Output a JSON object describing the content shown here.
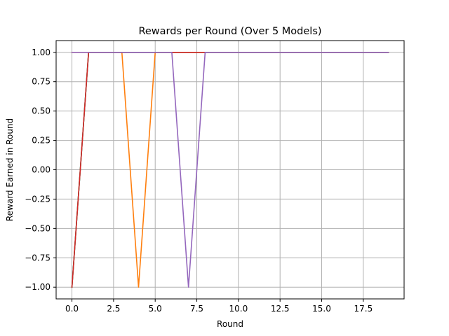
{
  "chart_data": {
    "type": "line",
    "title": "Rewards per Round (Over 5 Models)",
    "xlabel": "Round",
    "ylabel": "Reward Earned in Round",
    "xlim": [
      -0.95,
      19.95
    ],
    "ylim": [
      -1.1,
      1.1
    ],
    "xticks": [
      0.0,
      2.5,
      5.0,
      7.5,
      10.0,
      12.5,
      15.0,
      17.5
    ],
    "xtick_labels": [
      "0.0",
      "2.5",
      "5.0",
      "7.5",
      "10.0",
      "12.5",
      "15.0",
      "17.5"
    ],
    "yticks": [
      -1.0,
      -0.75,
      -0.5,
      -0.25,
      0.0,
      0.25,
      0.5,
      0.75,
      1.0
    ],
    "ytick_labels": [
      "−1.00",
      "−0.75",
      "−0.50",
      "−0.25",
      "0.00",
      "0.25",
      "0.50",
      "0.75",
      "1.00"
    ],
    "grid": true,
    "x": [
      0,
      1,
      2,
      3,
      4,
      5,
      6,
      7,
      8,
      9,
      10,
      11,
      12,
      13,
      14,
      15,
      16,
      17,
      18,
      19
    ],
    "series": [
      {
        "color": "#1f77b4",
        "values": [
          -1,
          1,
          1,
          1,
          1,
          1,
          1,
          1,
          1,
          1,
          1,
          1,
          1,
          1,
          1,
          1,
          1,
          1,
          1,
          1
        ]
      },
      {
        "color": "#ff7f0e",
        "values": [
          1,
          1,
          1,
          1,
          -1,
          1,
          1,
          1,
          1,
          1,
          1,
          1,
          1,
          1,
          1,
          1,
          1,
          1,
          1,
          1
        ]
      },
      {
        "color": "#2ca02c",
        "values": [
          -1,
          1,
          1,
          1,
          1,
          1,
          1,
          1,
          1,
          1,
          1,
          1,
          1,
          1,
          1,
          1,
          1,
          1,
          1,
          1
        ]
      },
      {
        "color": "#d62728",
        "values": [
          -1,
          1,
          1,
          1,
          1,
          1,
          1,
          1,
          1,
          1,
          1,
          1,
          1,
          1,
          1,
          1,
          1,
          1,
          1,
          1
        ]
      },
      {
        "color": "#9467bd",
        "values": [
          1,
          1,
          1,
          1,
          1,
          1,
          1,
          -1,
          1,
          1,
          1,
          1,
          1,
          1,
          1,
          1,
          1,
          1,
          1,
          1
        ]
      }
    ]
  }
}
